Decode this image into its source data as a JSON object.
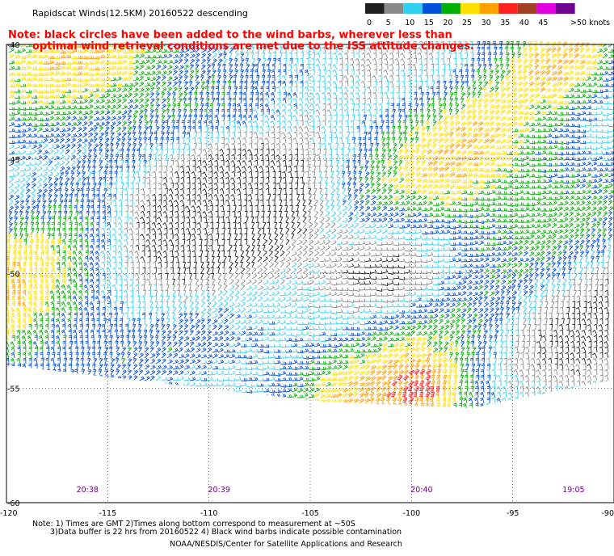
{
  "title": "Rapidscat Winds(12.5KM) 20160522 descending",
  "note_line1": "Note: black circles have been added to the wind barbs, wherever less than",
  "note_line2": "optimal wind retrieval conditions are met due to the ISS attitude changes.",
  "legend": {
    "unit": ">50 knots",
    "ticks": [
      "0",
      "5",
      "10",
      "15",
      "20",
      "25",
      "30",
      "35",
      "40",
      "45"
    ],
    "colors": [
      "#202020",
      "#8a8a8a",
      "#30d0f0",
      "#0050e0",
      "#00b000",
      "#ffe000",
      "#ffa000",
      "#ff2020",
      "#a04020",
      "#e000e0",
      "#700090"
    ]
  },
  "lat_labels": [
    "-40",
    "-45",
    "-50",
    "-55",
    "-60"
  ],
  "lon_labels": [
    "-120",
    "-115",
    "-110",
    "-105",
    "-100",
    "-95",
    "-90"
  ],
  "time_labels": [
    "20:38",
    "20:39",
    "20:40",
    "19:05"
  ],
  "footer_line1": "Note: 1) Times are GMT 2)Times along bottom correspond to measurement at ~50S",
  "footer_line2": "3)Data buffer is 22 hrs from 20160522 4) Black wind barbs indicate possible contamination",
  "credit": "NOAA/NESDIS/Center for Satellite Applications and Research",
  "chart_data": {
    "type": "map",
    "lat_range": [
      -60,
      -40
    ],
    "lon_range": [
      -120,
      -90
    ],
    "speed_scale_knots": [
      0,
      5,
      10,
      15,
      20,
      25,
      30,
      35,
      40,
      45,
      50
    ]
  }
}
